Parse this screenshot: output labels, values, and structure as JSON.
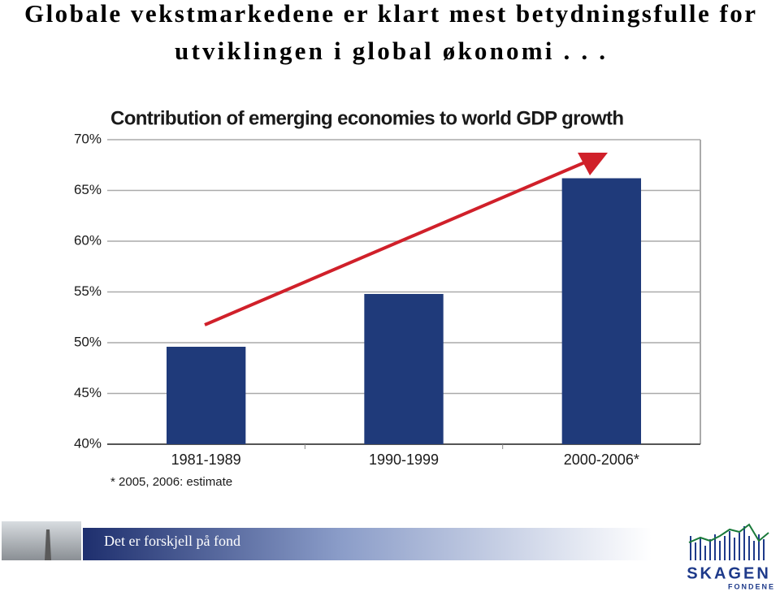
{
  "slide": {
    "title_lines": [
      "Globale vekstmarkedene er klart mest betydningsfulle for",
      "utviklingen i global økonomi . . ."
    ]
  },
  "chart_data": {
    "type": "bar",
    "title": "Contribution of emerging economies to world GDP growth",
    "categories": [
      "1981-1989",
      "1990-1999",
      "2000-2006*"
    ],
    "values": [
      49.6,
      54.8,
      66.2
    ],
    "color": "#1f3a7a",
    "ylim": [
      40,
      70
    ],
    "yticks": [
      {
        "value": 40,
        "label": "40%"
      },
      {
        "value": 45,
        "label": "45%"
      },
      {
        "value": 50,
        "label": "50%"
      },
      {
        "value": 55,
        "label": "55%"
      },
      {
        "value": 60,
        "label": "60%"
      },
      {
        "value": 65,
        "label": "65%"
      },
      {
        "value": 70,
        "label": "70%"
      }
    ],
    "grid": true,
    "footnote": "* 2005, 2006: estimate"
  },
  "footer": {
    "tagline": "Det er forskjell på fond",
    "logo": "SKAGEN",
    "logo_sub": "FONDENE"
  }
}
